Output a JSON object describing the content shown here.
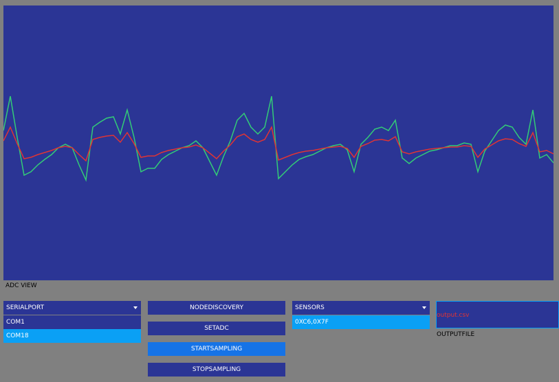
{
  "chart_data": {
    "type": "line",
    "title": "ADC VIEW",
    "background": "#2b3595",
    "ylim": [
      0,
      400
    ],
    "series": [
      {
        "color": "#33cc77",
        "values": [
          218,
          268,
          208,
          153,
          158,
          168,
          176,
          183,
          193,
          198,
          193,
          168,
          146,
          223,
          230,
          236,
          238,
          213,
          248,
          208,
          158,
          163,
          163,
          176,
          183,
          188,
          193,
          196,
          203,
          193,
          173,
          153,
          180,
          203,
          233,
          243,
          223,
          213,
          223,
          268,
          148,
          158,
          168,
          176,
          180,
          183,
          188,
          193,
          196,
          198,
          190,
          158,
          198,
          208,
          220,
          223,
          218,
          233,
          178,
          170,
          178,
          183,
          188,
          190,
          193,
          196,
          196,
          200,
          198,
          158,
          188,
          203,
          218,
          226,
          223,
          208,
          198,
          248,
          178,
          183,
          171
        ]
      },
      {
        "color": "#e03434",
        "values": [
          203,
          223,
          199,
          177,
          179,
          183,
          186,
          189,
          193,
          195,
          193,
          183,
          174,
          205,
          208,
          210,
          211,
          201,
          215,
          199,
          179,
          181,
          181,
          186,
          189,
          191,
          193,
          194,
          197,
          193,
          185,
          177,
          188,
          197,
          209,
          213,
          205,
          201,
          205,
          223,
          175,
          179,
          183,
          186,
          188,
          189,
          191,
          193,
          194,
          195,
          192,
          179,
          195,
          199,
          204,
          205,
          203,
          209,
          187,
          184,
          187,
          189,
          191,
          192,
          193,
          194,
          194,
          196,
          195,
          179,
          191,
          197,
          203,
          206,
          205,
          199,
          195,
          215,
          187,
          189,
          184
        ]
      }
    ]
  },
  "serial_port": {
    "label": "SERIALPORT",
    "options": [
      "COM1",
      "COM18"
    ],
    "selected": 1
  },
  "buttons": [
    "NODEDISCOVERY",
    "SETADC",
    "STARTSAMPLING",
    "STOPSAMPLING"
  ],
  "sensors": {
    "label": "SENSORS",
    "options": [
      "0XC6,0X7F"
    ],
    "selected": 0
  },
  "output_file": {
    "value": "output.csv",
    "label": "OUTPUTFILE"
  }
}
